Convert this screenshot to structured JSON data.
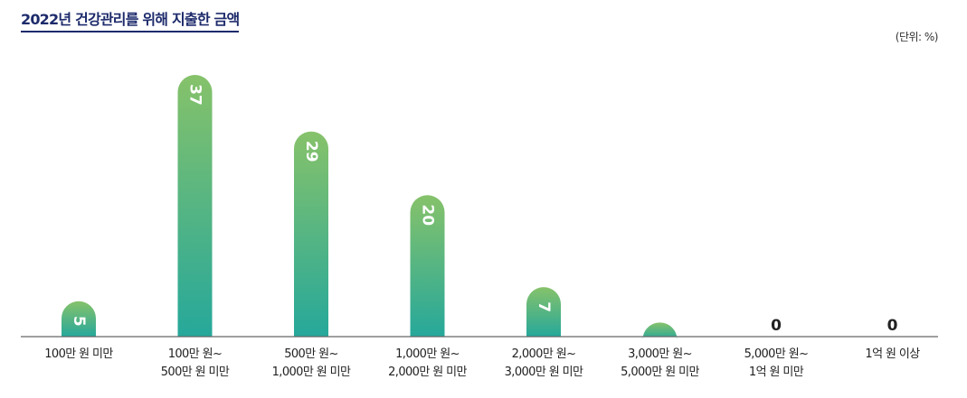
{
  "header": {
    "title": "2022년 건강관리를 위해 지출한 금액",
    "unit": "(단위: %)"
  },
  "colors": {
    "bar_top": "#86c26a",
    "bar_bottom": "#26a89b",
    "axis": "#666666",
    "title": "#1d2b6b"
  },
  "chart_data": {
    "type": "bar",
    "title": "2022년 건강관리를 위해 지출한 금액",
    "unit": "(단위: %)",
    "categories": [
      [
        "100만 원 미만"
      ],
      [
        "100만 원~",
        "500만 원 미만"
      ],
      [
        "500만 원~",
        "1,000만 원 미만"
      ],
      [
        "1,000만 원~",
        "2,000만 원 미만"
      ],
      [
        "2,000만 원~",
        "3,000만 원 미만"
      ],
      [
        "3,000만 원~",
        "5,000만 원 미만"
      ],
      [
        "5,000만 원~",
        "1억 원 미만"
      ],
      [
        "1억 원 이상"
      ]
    ],
    "values": [
      5,
      37,
      29,
      20,
      7,
      2,
      0,
      0
    ],
    "ylim": [
      0,
      37
    ],
    "grid": false,
    "legend": "none"
  }
}
